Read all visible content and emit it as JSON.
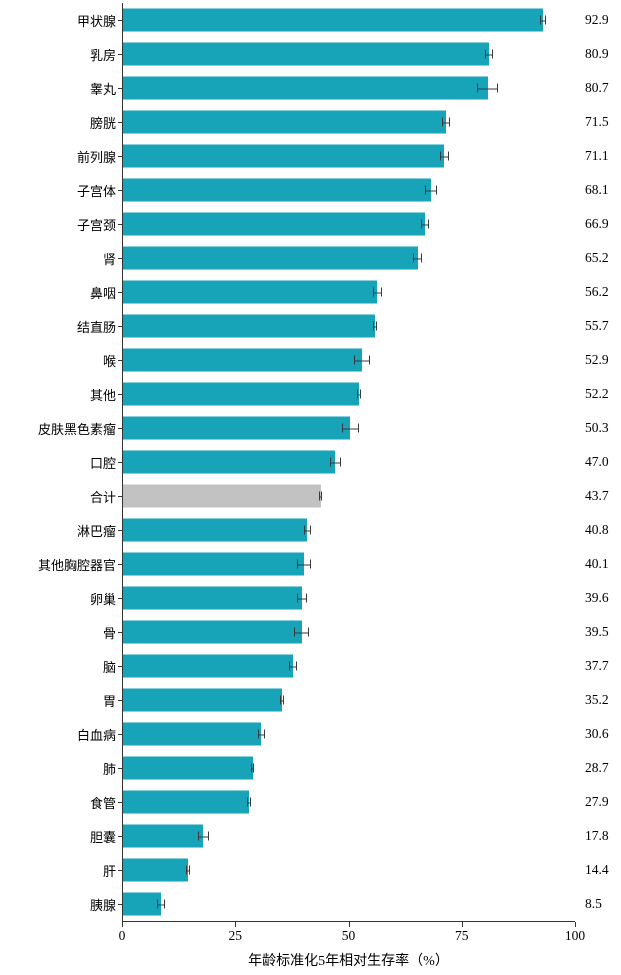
{
  "chart_data": {
    "type": "bar",
    "orientation": "horizontal",
    "title": "",
    "xlabel": "年龄标准化5年相对生存率（%）",
    "ylabel": "",
    "xlim": [
      0,
      100
    ],
    "xticks": [
      0,
      25,
      50,
      75,
      100
    ],
    "xtick_labels": [
      "0",
      "25",
      "50",
      "75",
      "100"
    ],
    "grid": false,
    "legend": false,
    "bar_color": "#17a3b8",
    "highlight_category": "合计",
    "highlight_color": "#c2c2c2",
    "error_bar_color": "#3a3a3a",
    "categories": [
      "甲状腺",
      "乳房",
      "睾丸",
      "膀胱",
      "前列腺",
      "子宫体",
      "子宫颈",
      "肾",
      "鼻咽",
      "结直肠",
      "喉",
      "其他",
      "皮肤黑色素瘤",
      "口腔",
      "合计",
      "淋巴瘤",
      "其他胸腔器官",
      "卵巢",
      "骨",
      "脑",
      "胃",
      "白血病",
      "肺",
      "食管",
      "胆囊",
      "肝",
      "胰腺"
    ],
    "values": [
      92.9,
      80.9,
      80.7,
      71.5,
      71.1,
      68.1,
      66.9,
      65.2,
      56.2,
      55.7,
      52.9,
      52.2,
      50.3,
      47.0,
      43.7,
      40.8,
      40.1,
      39.6,
      39.5,
      37.7,
      35.2,
      30.6,
      28.7,
      27.9,
      17.8,
      14.4,
      8.5
    ],
    "value_labels": [
      "92.9",
      "80.9",
      "80.7",
      "71.5",
      "71.1",
      "68.1",
      "66.9",
      "65.2",
      "56.2",
      "55.7",
      "52.9",
      "52.2",
      "50.3",
      "47.0",
      "43.7",
      "40.8",
      "40.1",
      "39.6",
      "39.5",
      "37.7",
      "35.2",
      "30.6",
      "28.7",
      "27.9",
      "17.8",
      "14.4",
      "8.5"
    ],
    "errors": [
      0.6,
      0.9,
      2.3,
      0.9,
      1.0,
      1.3,
      0.9,
      1.0,
      1.0,
      0.4,
      1.7,
      0.5,
      1.9,
      1.3,
      0.3,
      0.8,
      1.6,
      1.0,
      1.6,
      0.9,
      0.4,
      0.8,
      0.3,
      0.5,
      1.2,
      0.4,
      0.9
    ]
  }
}
